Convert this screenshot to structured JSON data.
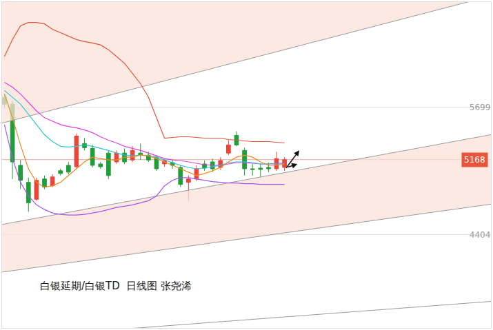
{
  "chart_data": {
    "type": "candlestick",
    "title": "白银延期/白银TD  日线图 张尧浠",
    "x": [
      0,
      1,
      2,
      3,
      4,
      5,
      6,
      7,
      8,
      9,
      10,
      11,
      12,
      13,
      14,
      15,
      16,
      17,
      18,
      19,
      20,
      21,
      22,
      23,
      24,
      25,
      26,
      27,
      28,
      29,
      30,
      31,
      32,
      33,
      34,
      35
    ],
    "open": [
      5802,
      5733,
      5110,
      4937,
      4764,
      4971,
      4902,
      5055,
      5110,
      5096,
      5332,
      5283,
      5124,
      5235,
      5145,
      5235,
      5165,
      5235,
      5214,
      5193,
      5124,
      5138,
      5089,
      4937,
      4971,
      5124,
      5145,
      5089,
      5235,
      5415,
      5262,
      5075,
      5082,
      5089,
      5075,
      5089
    ],
    "high": [
      5837,
      5768,
      5165,
      4985,
      4985,
      5006,
      5020,
      5075,
      5145,
      5435,
      5387,
      5318,
      5145,
      5262,
      5262,
      5283,
      5304,
      5332,
      5248,
      5214,
      5179,
      5165,
      5110,
      5006,
      5110,
      5159,
      5179,
      5193,
      5366,
      5456,
      5290,
      5124,
      5124,
      5138,
      5248,
      5193
    ],
    "low": [
      5699,
      4971,
      4868,
      4639,
      4750,
      4868,
      4888,
      5006,
      5020,
      5075,
      5262,
      5089,
      5075,
      4971,
      5124,
      5124,
      5145,
      5165,
      5145,
      5055,
      5096,
      5075,
      4888,
      4750,
      4951,
      5055,
      5041,
      5062,
      5214,
      5304,
      5006,
      5006,
      4985,
      5041,
      5055,
      5055
    ],
    "close": [
      5733,
      5145,
      4958,
      4729,
      4958,
      4888,
      4992,
      5027,
      5041,
      5408,
      5290,
      5110,
      5096,
      5006,
      5235,
      5145,
      5262,
      5214,
      5165,
      5075,
      5159,
      5110,
      4916,
      4971,
      5075,
      5082,
      5075,
      5159,
      5318,
      5318,
      5075,
      5068,
      5068,
      5075,
      5179,
      5168
    ],
    "series": [
      {
        "color": "#e2553c",
        "values": [
          6218,
          6391,
          6530,
          6564,
          6564,
          6550,
          6495,
          6460,
          6426,
          6391,
          6370,
          6356,
          6336,
          6287,
          6218,
          6149,
          6045,
          5941,
          5802,
          5595,
          5387,
          5394,
          5401,
          5401,
          5394,
          5387,
          5387,
          5387,
          5373,
          5366,
          5359,
          5352,
          5352,
          5352,
          5345,
          5338
        ]
      },
      {
        "color": "#e040e0",
        "values": [
          5955,
          5906,
          5837,
          5747,
          5664,
          5595,
          5560,
          5525,
          5505,
          5491,
          5470,
          5442,
          5401,
          5366,
          5338,
          5304,
          5283,
          5262,
          5235,
          5207,
          5179,
          5165,
          5159,
          5145,
          5131,
          5117,
          5110,
          5110,
          5124,
          5138,
          5138,
          5131,
          5124,
          5124,
          5131,
          5131
        ]
      },
      {
        "color": "#2ec4d4",
        "values": [
          5872,
          5802,
          5733,
          5629,
          5525,
          5422,
          5352,
          5304,
          5297,
          5304,
          5318,
          5304,
          5283,
          5262,
          5235,
          5214,
          5207,
          5214,
          5207,
          5193,
          5165,
          5138,
          5110,
          5089,
          5075,
          5082,
          5096,
          5110,
          5138,
          5145,
          5145,
          5138,
          5124,
          5124,
          5124,
          5124
        ]
      },
      {
        "color": "#f08a1c",
        "values": [
          5837,
          5595,
          5318,
          5075,
          4937,
          4888,
          4902,
          4937,
          5006,
          5075,
          5145,
          5193,
          5179,
          5165,
          5165,
          5193,
          5193,
          5214,
          5207,
          5179,
          5145,
          5110,
          5075,
          5041,
          5006,
          5027,
          5055,
          5089,
          5145,
          5193,
          5214,
          5193,
          5145,
          5110,
          5110,
          5124
        ]
      },
      {
        "color": "#a455ee",
        "values": [
          5525,
          5179,
          4937,
          4798,
          4708,
          4660,
          4625,
          4611,
          4604,
          4604,
          4611,
          4625,
          4639,
          4660,
          4681,
          4694,
          4708,
          4729,
          4750,
          4798,
          4902,
          4958,
          4985,
          4985,
          4971,
          4958,
          4944,
          4937,
          4930,
          4930,
          4923,
          4923,
          4916,
          4916,
          4916,
          4916
        ]
      }
    ],
    "trend_lines": [
      {
        "x": [
          -0.3,
          60.8
        ],
        "values": [
          5540,
          6834
        ],
        "color": "#9a9a9a"
      },
      {
        "x": [
          -0.3,
          60.8
        ],
        "values": [
          4508,
          5422
        ],
        "color": "#9a9a9a"
      },
      {
        "x": [
          -0.3,
          60.8
        ],
        "values": [
          4023,
          4715
        ],
        "color": "#9a9a9a"
      },
      {
        "x": [
          -0.3,
          60.8
        ],
        "values": [
          3351,
          3725
        ],
        "color": "#9a9a9a"
      }
    ],
    "last_price": 5168,
    "xlim": [
      -0.3,
      60.8
    ],
    "ylim": [
      3455,
      6772
    ],
    "yticks": [
      4404,
      5699
    ],
    "tick_labels": "y",
    "grid": true
  }
}
